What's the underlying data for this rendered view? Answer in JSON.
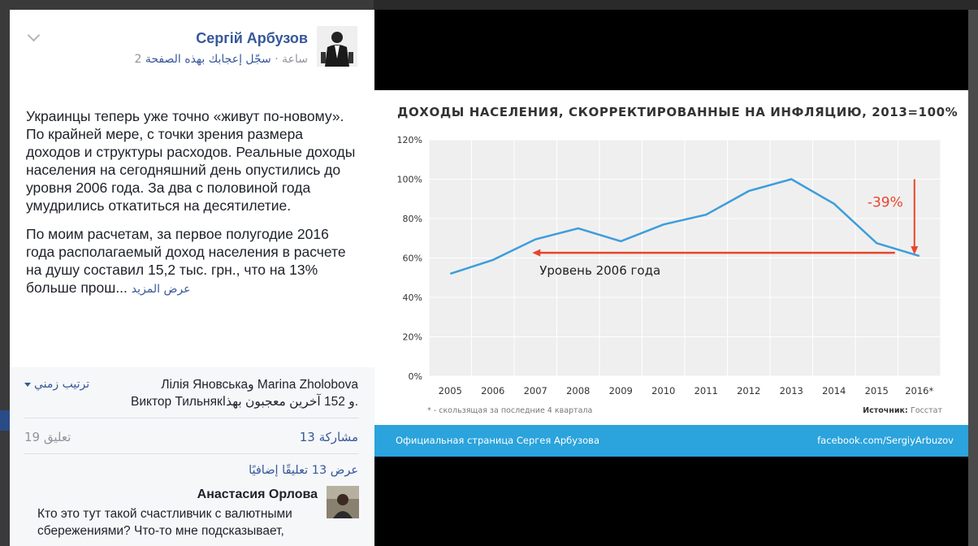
{
  "post": {
    "author": "Сергій Арбузов",
    "like_page": "سجّل إعجابك بهذه الصفحة",
    "separator": " · ",
    "time": "2 ساعة",
    "paragraph1": "Украинцы теперь уже точно «живут по-новому». По крайней мере, с точки зрения размера доходов и структуры расходов. Реальные доходы населения на сегодняшний день опустились до уровня 2006 года. За два с половиной года умудрились откатиться на десятилетие.",
    "paragraph2": "По моим расчетам, за первое полугодие 2016 года располагаемый доход населения в расчете на душу составил 15,2 тыс. грн., что на 13% больше прош...",
    "see_more": "عرض المزيد"
  },
  "reactions": {
    "line1": "Лілія Яновськаو Marina Zholobova",
    "line2": "Виктор Тильнякو 152 آخرين معجبون بهذا.",
    "sort_label": "ترتيب زمني"
  },
  "stats": {
    "comments": "19 تعليق",
    "shares": "13 مشاركة"
  },
  "comments_section": {
    "view_more": "عرض 13 تعليقًا إضافيًا",
    "first_comment": {
      "author": "Анастасия Орлова",
      "text": "Кто это тут такой счастливчик с валютными сбережениями? Что-то мне подсказывает,"
    }
  },
  "slide": {
    "footer_left": "Официальная страница Сергея Арбузова",
    "footer_right": "facebook.com/SergiyArbuzov"
  },
  "chart_data": {
    "type": "line",
    "title": "ДОХОДЫ НАСЕЛЕНИЯ, СКОРРЕКТИРОВАННЫЕ НА ИНФЛЯЦИЮ, 2013=100%",
    "categories": [
      "2005",
      "2006",
      "2007",
      "2008",
      "2009",
      "2010",
      "2011",
      "2012",
      "2013",
      "2014",
      "2015",
      "2016*"
    ],
    "values": [
      52,
      59,
      69.5,
      75,
      68.5,
      77,
      82,
      94,
      100,
      87.5,
      67.5,
      61
    ],
    "ylim": [
      0,
      120
    ],
    "yticks": [
      "0%",
      "20%",
      "40%",
      "60%",
      "80%",
      "100%",
      "120%"
    ],
    "grid": true,
    "line_color": "#3d9ddc",
    "annotation_color": "#e8452c",
    "annotations": {
      "drop_label": "-39%",
      "level_label": "Уровень 2006 года"
    },
    "footnote": "* - скользящая за последние 4 квартала",
    "source_label": "Источник:",
    "source_value": "Госстат"
  }
}
